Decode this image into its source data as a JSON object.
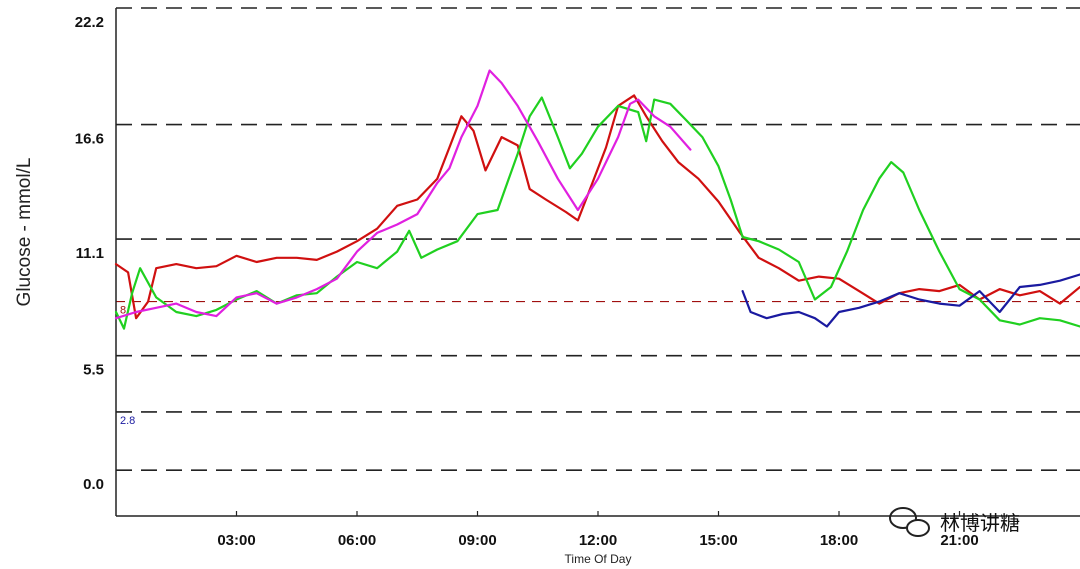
{
  "chart_data": {
    "type": "line",
    "ylabel": "Glucose - mmol/L",
    "xlabel": "Time Of Day",
    "xlim": [
      0,
      24
    ],
    "ylim": [
      -2.2,
      22.2
    ],
    "yticks": [
      {
        "value": 22.2,
        "label": "22.2"
      },
      {
        "value": 16.6,
        "label": "16.6"
      },
      {
        "value": 11.1,
        "label": "11.1"
      },
      {
        "value": 5.5,
        "label": "5.5"
      },
      {
        "value": 0.0,
        "label": "0.0"
      }
    ],
    "xticks": [
      {
        "value": 3,
        "label": "03:00"
      },
      {
        "value": 6,
        "label": "06:00"
      },
      {
        "value": 9,
        "label": "09:00"
      },
      {
        "value": 12,
        "label": "12:00"
      },
      {
        "value": 15,
        "label": "15:00"
      },
      {
        "value": 18,
        "label": "18:00"
      },
      {
        "value": 21,
        "label": "21:00"
      }
    ],
    "gridlines": [
      22.2,
      16.6,
      11.1,
      5.5,
      2.8,
      0.0
    ],
    "thresholds": [
      {
        "value": 8.1,
        "label": "8",
        "color": "#a01010"
      },
      {
        "value": 2.8,
        "label": "2.8",
        "color": "#1a1aa0"
      }
    ],
    "series": [
      {
        "color": "#d01010",
        "points": [
          [
            0,
            9.9
          ],
          [
            0.3,
            9.5
          ],
          [
            0.5,
            7.3
          ],
          [
            0.8,
            8.1
          ],
          [
            1,
            9.7
          ],
          [
            1.5,
            9.9
          ],
          [
            2,
            9.7
          ],
          [
            2.5,
            9.8
          ],
          [
            3,
            10.3
          ],
          [
            3.5,
            10.0
          ],
          [
            4,
            10.2
          ],
          [
            4.5,
            10.2
          ],
          [
            5,
            10.1
          ],
          [
            5.5,
            10.5
          ],
          [
            6,
            11.0
          ],
          [
            6.5,
            11.6
          ],
          [
            7,
            12.7
          ],
          [
            7.5,
            13.0
          ],
          [
            8,
            14.0
          ],
          [
            8.3,
            15.5
          ],
          [
            8.6,
            17.0
          ],
          [
            8.9,
            16.3
          ],
          [
            9.2,
            14.4
          ],
          [
            9.6,
            16.0
          ],
          [
            10,
            15.6
          ],
          [
            10.3,
            13.5
          ],
          [
            10.7,
            13.0
          ],
          [
            11.2,
            12.4
          ],
          [
            11.5,
            12.0
          ],
          [
            11.8,
            13.5
          ],
          [
            12.2,
            15.5
          ],
          [
            12.5,
            17.5
          ],
          [
            12.9,
            18.0
          ],
          [
            13.2,
            17.0
          ],
          [
            13.6,
            15.8
          ],
          [
            14,
            14.8
          ],
          [
            14.5,
            14.0
          ],
          [
            15,
            12.9
          ],
          [
            15.5,
            11.5
          ],
          [
            16,
            10.2
          ],
          [
            16.5,
            9.7
          ],
          [
            17,
            9.1
          ],
          [
            17.5,
            9.3
          ],
          [
            18,
            9.2
          ],
          [
            18.5,
            8.6
          ],
          [
            19,
            8.0
          ],
          [
            19.5,
            8.5
          ],
          [
            20,
            8.7
          ],
          [
            20.5,
            8.6
          ],
          [
            21,
            8.9
          ],
          [
            21.5,
            8.2
          ],
          [
            22,
            8.7
          ],
          [
            22.5,
            8.4
          ],
          [
            23,
            8.6
          ],
          [
            23.5,
            8.0
          ],
          [
            24,
            8.8
          ]
        ]
      },
      {
        "color": "#20d020",
        "points": [
          [
            0,
            7.6
          ],
          [
            0.2,
            6.8
          ],
          [
            0.4,
            8.5
          ],
          [
            0.6,
            9.7
          ],
          [
            1,
            8.3
          ],
          [
            1.5,
            7.6
          ],
          [
            2,
            7.4
          ],
          [
            2.5,
            7.7
          ],
          [
            3,
            8.2
          ],
          [
            3.5,
            8.6
          ],
          [
            4,
            8.0
          ],
          [
            4.5,
            8.4
          ],
          [
            5,
            8.5
          ],
          [
            5.5,
            9.3
          ],
          [
            6,
            10.0
          ],
          [
            6.5,
            9.7
          ],
          [
            7,
            10.5
          ],
          [
            7.3,
            11.5
          ],
          [
            7.6,
            10.2
          ],
          [
            8,
            10.6
          ],
          [
            8.5,
            11.0
          ],
          [
            9,
            12.3
          ],
          [
            9.5,
            12.5
          ],
          [
            10,
            15.2
          ],
          [
            10.3,
            17.0
          ],
          [
            10.6,
            17.9
          ],
          [
            11,
            16.0
          ],
          [
            11.3,
            14.5
          ],
          [
            11.6,
            15.2
          ],
          [
            12,
            16.5
          ],
          [
            12.5,
            17.5
          ],
          [
            13,
            17.2
          ],
          [
            13.2,
            15.8
          ],
          [
            13.4,
            17.8
          ],
          [
            13.8,
            17.6
          ],
          [
            14.2,
            16.8
          ],
          [
            14.6,
            16.0
          ],
          [
            15,
            14.6
          ],
          [
            15.3,
            13.0
          ],
          [
            15.6,
            11.2
          ],
          [
            16,
            11.0
          ],
          [
            16.5,
            10.6
          ],
          [
            17,
            10.0
          ],
          [
            17.4,
            8.2
          ],
          [
            17.8,
            8.8
          ],
          [
            18.2,
            10.5
          ],
          [
            18.6,
            12.5
          ],
          [
            19,
            14.0
          ],
          [
            19.3,
            14.8
          ],
          [
            19.6,
            14.3
          ],
          [
            20,
            12.5
          ],
          [
            20.5,
            10.5
          ],
          [
            21,
            8.7
          ],
          [
            21.5,
            8.2
          ],
          [
            22,
            7.2
          ],
          [
            22.5,
            7.0
          ],
          [
            23,
            7.3
          ],
          [
            23.5,
            7.2
          ],
          [
            24,
            6.9
          ]
        ]
      },
      {
        "color": "#e020e0",
        "points": [
          [
            0,
            7.3
          ],
          [
            0.5,
            7.6
          ],
          [
            1,
            7.8
          ],
          [
            1.5,
            8.0
          ],
          [
            2,
            7.6
          ],
          [
            2.5,
            7.4
          ],
          [
            3,
            8.3
          ],
          [
            3.5,
            8.5
          ],
          [
            4,
            8.0
          ],
          [
            4.5,
            8.3
          ],
          [
            5,
            8.7
          ],
          [
            5.5,
            9.2
          ],
          [
            6,
            10.5
          ],
          [
            6.5,
            11.4
          ],
          [
            7,
            11.8
          ],
          [
            7.5,
            12.3
          ],
          [
            8,
            13.8
          ],
          [
            8.3,
            14.5
          ],
          [
            8.6,
            16.0
          ],
          [
            9,
            17.5
          ],
          [
            9.3,
            19.2
          ],
          [
            9.6,
            18.6
          ],
          [
            10,
            17.5
          ],
          [
            10.5,
            15.8
          ],
          [
            11,
            14.0
          ],
          [
            11.5,
            12.5
          ],
          [
            12,
            14.0
          ],
          [
            12.5,
            16.0
          ],
          [
            12.8,
            17.6
          ],
          [
            13,
            17.8
          ],
          [
            13.4,
            17.0
          ],
          [
            13.8,
            16.5
          ],
          [
            14.3,
            15.4
          ]
        ]
      },
      {
        "color": "#1a1aa0",
        "points": [
          [
            15.6,
            8.6
          ],
          [
            15.8,
            7.6
          ],
          [
            16.2,
            7.3
          ],
          [
            16.6,
            7.5
          ],
          [
            17,
            7.6
          ],
          [
            17.4,
            7.3
          ],
          [
            17.7,
            6.9
          ],
          [
            18,
            7.6
          ],
          [
            18.5,
            7.8
          ],
          [
            19,
            8.1
          ],
          [
            19.5,
            8.5
          ],
          [
            20,
            8.2
          ],
          [
            20.5,
            8.0
          ],
          [
            21,
            7.9
          ],
          [
            21.5,
            8.6
          ],
          [
            22,
            7.6
          ],
          [
            22.5,
            8.8
          ],
          [
            23,
            8.9
          ],
          [
            23.5,
            9.1
          ],
          [
            24,
            9.4
          ]
        ]
      }
    ]
  },
  "watermark": {
    "text": "林博讲糖"
  }
}
